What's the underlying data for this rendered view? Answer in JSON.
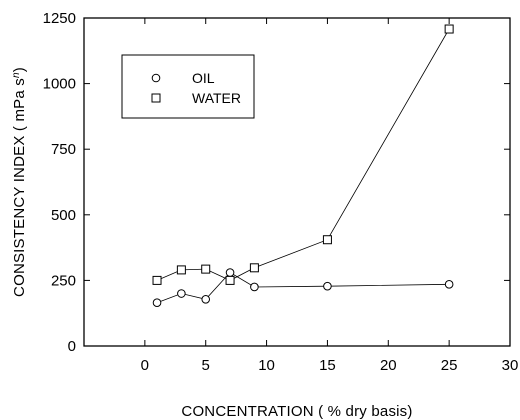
{
  "chart_data": {
    "type": "line",
    "xlabel": "CONCENTRATION  ( % dry basis)",
    "ylabel_main": "CONSISTENCY  INDEX  ( mPa s",
    "ylabel_sup": "n",
    "ylabel_end": ")",
    "xlim": [
      -5,
      30
    ],
    "ylim": [
      0,
      1250
    ],
    "x_ticks": [
      0,
      5,
      10,
      15,
      20,
      25,
      30
    ],
    "y_ticks": [
      0,
      250,
      500,
      750,
      1000,
      1250
    ],
    "grid": false,
    "legend_position": "top-left",
    "series": [
      {
        "name": "OIL",
        "marker": "circle",
        "x": [
          1,
          3,
          5,
          7,
          9,
          15,
          25
        ],
        "y": [
          165,
          200,
          178,
          280,
          225,
          228,
          235
        ]
      },
      {
        "name": "WATER",
        "marker": "square",
        "x": [
          1,
          3,
          5,
          7,
          9,
          15,
          25
        ],
        "y": [
          250,
          290,
          293,
          250,
          298,
          405,
          1208
        ]
      }
    ]
  }
}
